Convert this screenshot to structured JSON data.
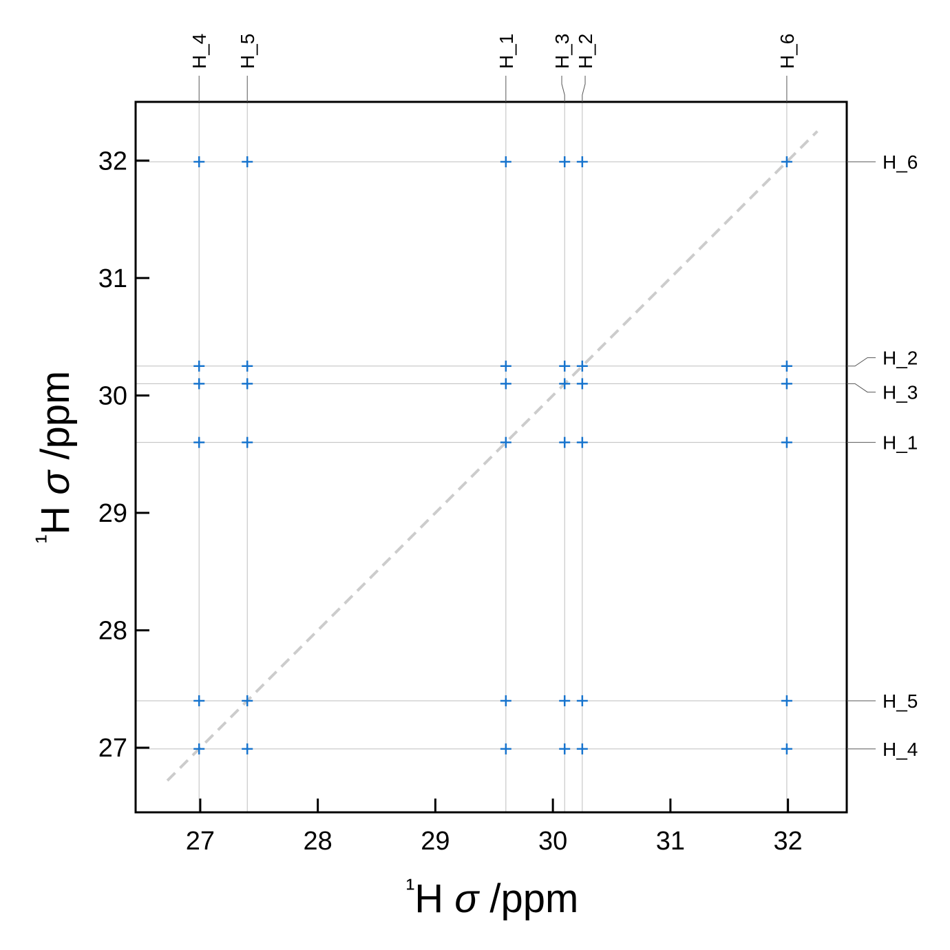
{
  "chart_data": {
    "type": "scatter",
    "xlabel": "¹H σ /ppm",
    "ylabel": "¹H σ /ppm",
    "xlim": [
      26.45,
      32.5
    ],
    "ylim": [
      26.45,
      32.5
    ],
    "xticks": [
      27,
      28,
      29,
      30,
      31,
      32
    ],
    "yticks": [
      27,
      28,
      29,
      30,
      31,
      32
    ],
    "grid": false,
    "diagonal_line": {
      "from": 26.72,
      "to": 32.25,
      "style": "dashed",
      "color": "#cccccc"
    },
    "marker_color": "#1874cd",
    "marker": "plus",
    "atoms": [
      {
        "label": "H_1",
        "shift": 29.6
      },
      {
        "label": "H_2",
        "shift": 30.25
      },
      {
        "label": "H_3",
        "shift": 30.1
      },
      {
        "label": "H_4",
        "shift": 26.99
      },
      {
        "label": "H_5",
        "shift": 27.4
      },
      {
        "label": "H_6",
        "shift": 31.99
      }
    ],
    "correlations": "all pairs of atom shifts (every x shift against every y shift)"
  }
}
